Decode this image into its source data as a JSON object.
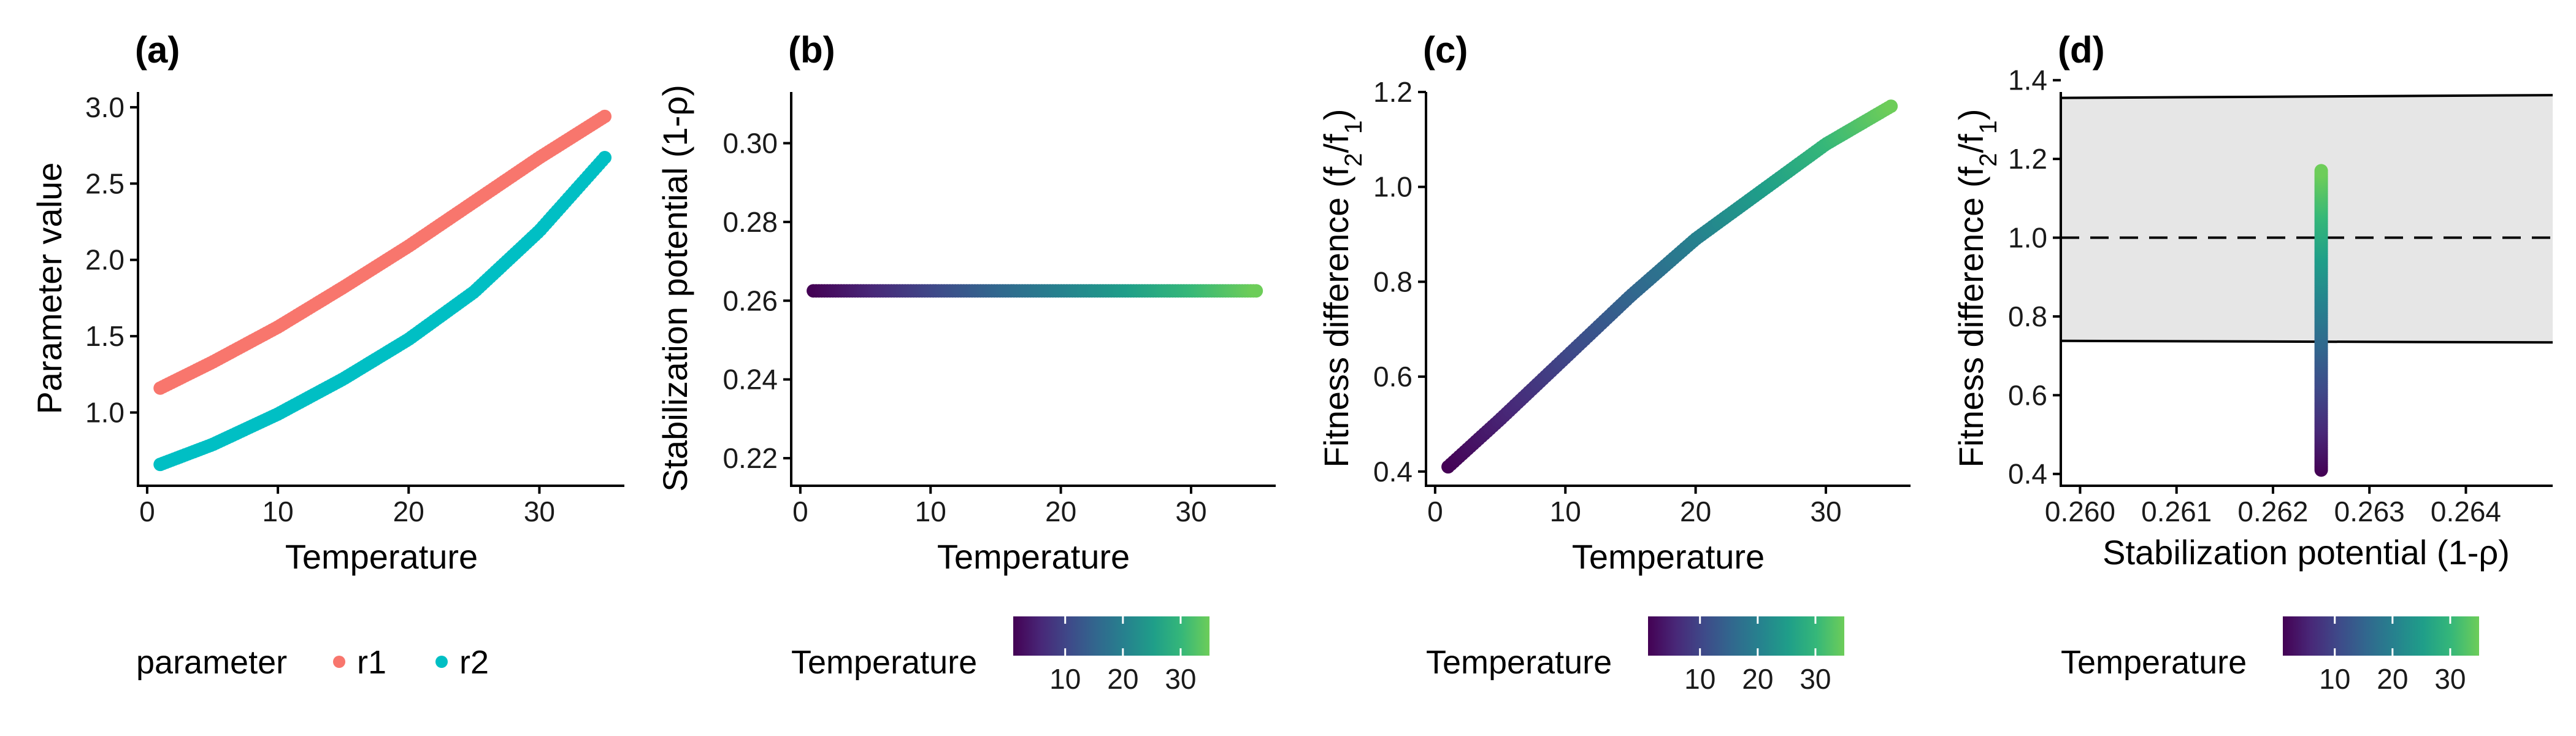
{
  "colors": {
    "r1": "#F8766D",
    "r2": "#00BFC4",
    "viridis": [
      "#440154",
      "#482878",
      "#3E4A89",
      "#31688E",
      "#26828E",
      "#1F9E89",
      "#35B779",
      "#6DCD59"
    ],
    "coexistence_region": "#E6E6E6"
  },
  "chart_data": [
    {
      "panel_label": "(a)",
      "type": "scatter",
      "xlabel": "Temperature",
      "ylabel": "Parameter value",
      "xlim": [
        -0.7,
        36.5
      ],
      "ylim": [
        0.52,
        3.1
      ],
      "xticks": [
        0,
        10,
        20,
        30
      ],
      "yticks": [
        1.0,
        1.5,
        2.0,
        2.5,
        3.0
      ],
      "ytick_labels": [
        "1.0",
        "1.5",
        "2.0",
        "2.5",
        "3.0"
      ],
      "x": [
        1,
        5,
        10,
        15,
        20,
        25,
        30,
        35
      ],
      "series": [
        {
          "name": "r1",
          "values": [
            1.16,
            1.33,
            1.56,
            1.82,
            2.09,
            2.38,
            2.67,
            2.94
          ]
        },
        {
          "name": "r2",
          "values": [
            0.66,
            0.79,
            0.99,
            1.22,
            1.48,
            1.79,
            2.19,
            2.67
          ]
        }
      ],
      "legend": {
        "title": "parameter",
        "position": "bottom",
        "entries": [
          "r1",
          "r2"
        ]
      },
      "grid": false
    },
    {
      "panel_label": "(b)",
      "type": "scatter",
      "xlabel": "Temperature",
      "ylabel": "Stabilization potential (1-ρ)",
      "xlim": [
        -0.7,
        36.5
      ],
      "ylim": [
        0.213,
        0.313
      ],
      "xticks": [
        0,
        10,
        20,
        30
      ],
      "yticks": [
        0.22,
        0.24,
        0.26,
        0.28,
        0.3
      ],
      "ytick_labels": [
        "0.22",
        "0.24",
        "0.26",
        "0.28",
        "0.30"
      ],
      "x": [
        1,
        35
      ],
      "y": [
        0.2625,
        0.2625
      ],
      "color_by": "Temperature",
      "colorbar": {
        "title": "Temperature",
        "range": [
          1,
          35
        ],
        "ticks": [
          10,
          20,
          30
        ]
      },
      "grid": false
    },
    {
      "panel_label": "(c)",
      "type": "scatter",
      "xlabel": "Temperature",
      "ylabel": "Fitness difference (f2/f1)",
      "xlim": [
        -0.7,
        36.5
      ],
      "ylim": [
        0.37,
        1.2
      ],
      "xticks": [
        0,
        10,
        20,
        30
      ],
      "yticks": [
        0.4,
        0.6,
        0.8,
        1.0,
        1.2
      ],
      "ytick_labels": [
        "0.4",
        "0.6",
        "0.8",
        "1.0",
        "1.2"
      ],
      "x": [
        1,
        5,
        10,
        15,
        20,
        25,
        30,
        35
      ],
      "y": [
        0.41,
        0.51,
        0.64,
        0.77,
        0.89,
        0.99,
        1.09,
        1.17
      ],
      "color_by": "Temperature",
      "colorbar": {
        "title": "Temperature",
        "range": [
          1,
          35
        ],
        "ticks": [
          10,
          20,
          30
        ]
      },
      "grid": false
    },
    {
      "panel_label": "(d)",
      "type": "scatter",
      "xlabel": "Stabilization potential (1-ρ)",
      "ylabel": "Fitness difference (f2/f1)",
      "xlim": [
        0.2598,
        0.2649
      ],
      "ylim": [
        0.37,
        1.37
      ],
      "xticks": [
        0.26,
        0.261,
        0.262,
        0.263,
        0.264
      ],
      "xtick_labels": [
        "0.260",
        "0.261",
        "0.262",
        "0.263",
        "0.264"
      ],
      "yticks": [
        0.4,
        0.6,
        0.8,
        1.0,
        1.2,
        1.4
      ],
      "ytick_labels": [
        "0.4",
        "0.6",
        "0.8",
        "1.0",
        "1.2",
        "1.4"
      ],
      "x": [
        0.2625,
        0.2625
      ],
      "y": [
        0.41,
        1.17
      ],
      "temperature": [
        1,
        35
      ],
      "upper_boundary": {
        "x": [
          0.2598,
          0.2649
        ],
        "y": [
          1.355,
          1.362
        ]
      },
      "lower_boundary": {
        "x": [
          0.2598,
          0.2649
        ],
        "y": [
          0.738,
          0.734
        ]
      },
      "reference_line": {
        "y": 1.0,
        "style": "dashed"
      },
      "color_by": "Temperature",
      "colorbar": {
        "title": "Temperature",
        "range": [
          1,
          35
        ],
        "ticks": [
          10,
          20,
          30
        ]
      },
      "grid": false
    }
  ]
}
